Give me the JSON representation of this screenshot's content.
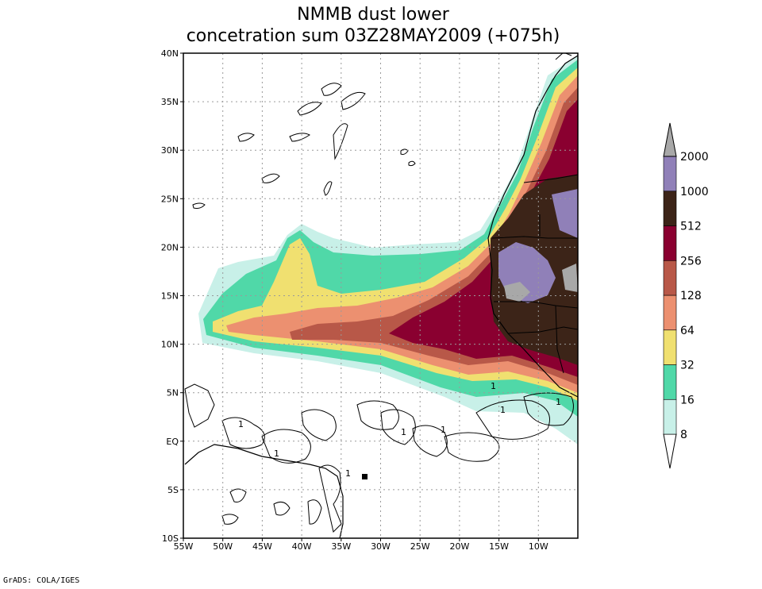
{
  "title": {
    "line1": "NMMB dust lower",
    "line2": "concetration sum 03Z28MAY2009 (+075h)"
  },
  "footer": "GrADS: COLA/IGES",
  "chart_data": {
    "type": "heatmap",
    "lon_range": [
      -55,
      -5
    ],
    "lat_range": [
      -10,
      40
    ],
    "lon_ticks": [
      "55W",
      "50W",
      "45W",
      "40W",
      "35W",
      "30W",
      "25W",
      "20W",
      "15W",
      "10W"
    ],
    "lat_ticks": [
      "10S",
      "5S",
      "EQ",
      "5N",
      "10N",
      "15N",
      "20N",
      "25N",
      "30N",
      "35N",
      "40N"
    ],
    "grid": true,
    "contour_label": "1",
    "colorbar": {
      "levels": [
        "8",
        "16",
        "32",
        "64",
        "128",
        "256",
        "512",
        "1000",
        "2000"
      ],
      "colors": [
        "#ffffff",
        "#c8f0e8",
        "#50d8a8",
        "#f0e070",
        "#ec9070",
        "#b85848",
        "#8a0030",
        "#3c2418",
        "#9080b8",
        "#a8a8a8"
      ]
    }
  }
}
